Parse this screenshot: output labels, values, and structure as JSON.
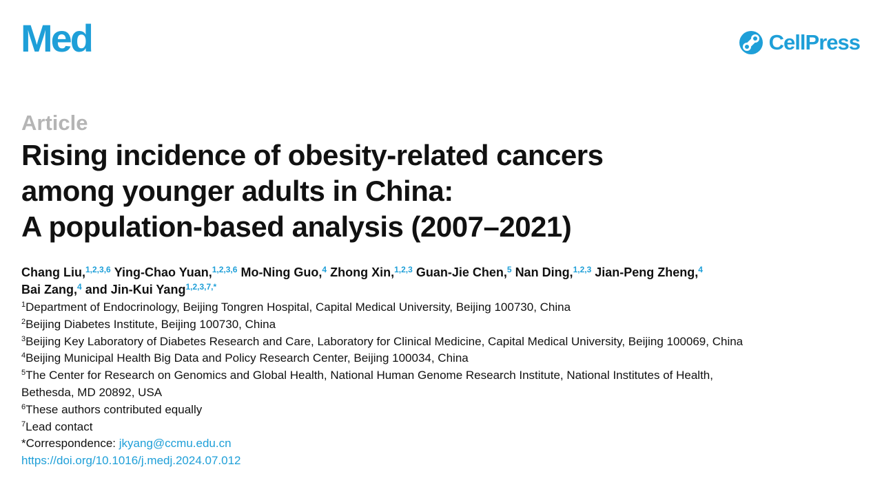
{
  "header": {
    "journal": "Med",
    "publisher": "CellPress"
  },
  "article_type": "Article",
  "title_lines": [
    "Rising incidence of obesity-related cancers",
    "among younger adults in China:",
    "A population-based analysis (2007–2021)"
  ],
  "authors": [
    {
      "name": "Chang Liu,",
      "sup": "1,2,3,6"
    },
    {
      "name": "Ying-Chao Yuan,",
      "sup": "1,2,3,6"
    },
    {
      "name": "Mo-Ning Guo,",
      "sup": "4"
    },
    {
      "name": "Zhong Xin,",
      "sup": "1,2,3"
    },
    {
      "name": "Guan-Jie Chen,",
      "sup": "5"
    },
    {
      "name": "Nan Ding,",
      "sup": "1,2,3"
    },
    {
      "name": "Jian-Peng Zheng,",
      "sup": "4"
    },
    {
      "name": "Bai Zang,",
      "sup": "4"
    },
    {
      "name": "Jin-Kui Yang",
      "sup": "1,2,3,7,*"
    }
  ],
  "authors_conjunction": "and",
  "affiliations": [
    {
      "num": "1",
      "text": "Department of Endocrinology, Beijing Tongren Hospital, Capital Medical University, Beijing 100730, China"
    },
    {
      "num": "2",
      "text": "Beijing Diabetes Institute, Beijing 100730, China"
    },
    {
      "num": "3",
      "text": "Beijing Key Laboratory of Diabetes Research and Care, Laboratory for Clinical Medicine, Capital Medical University, Beijing 100069, China"
    },
    {
      "num": "4",
      "text": "Beijing Municipal Health Big Data and Policy Research Center, Beijing 100034, China"
    },
    {
      "num": "5",
      "text": "The Center for Research on Genomics and Global Health, National Human Genome Research Institute, National Institutes of Health,",
      "continuation": "Bethesda, MD 20892, USA"
    },
    {
      "num": "6",
      "text": "These authors contributed equally"
    },
    {
      "num": "7",
      "text": "Lead contact"
    }
  ],
  "correspondence": {
    "label": "*Correspondence:",
    "email": "jkyang@ccmu.edu.cn"
  },
  "doi": "https://doi.org/10.1016/j.medj.2024.07.012",
  "colors": {
    "brand": "#1e9fd8",
    "article_type": "#b5b5b5",
    "text": "#111111"
  }
}
